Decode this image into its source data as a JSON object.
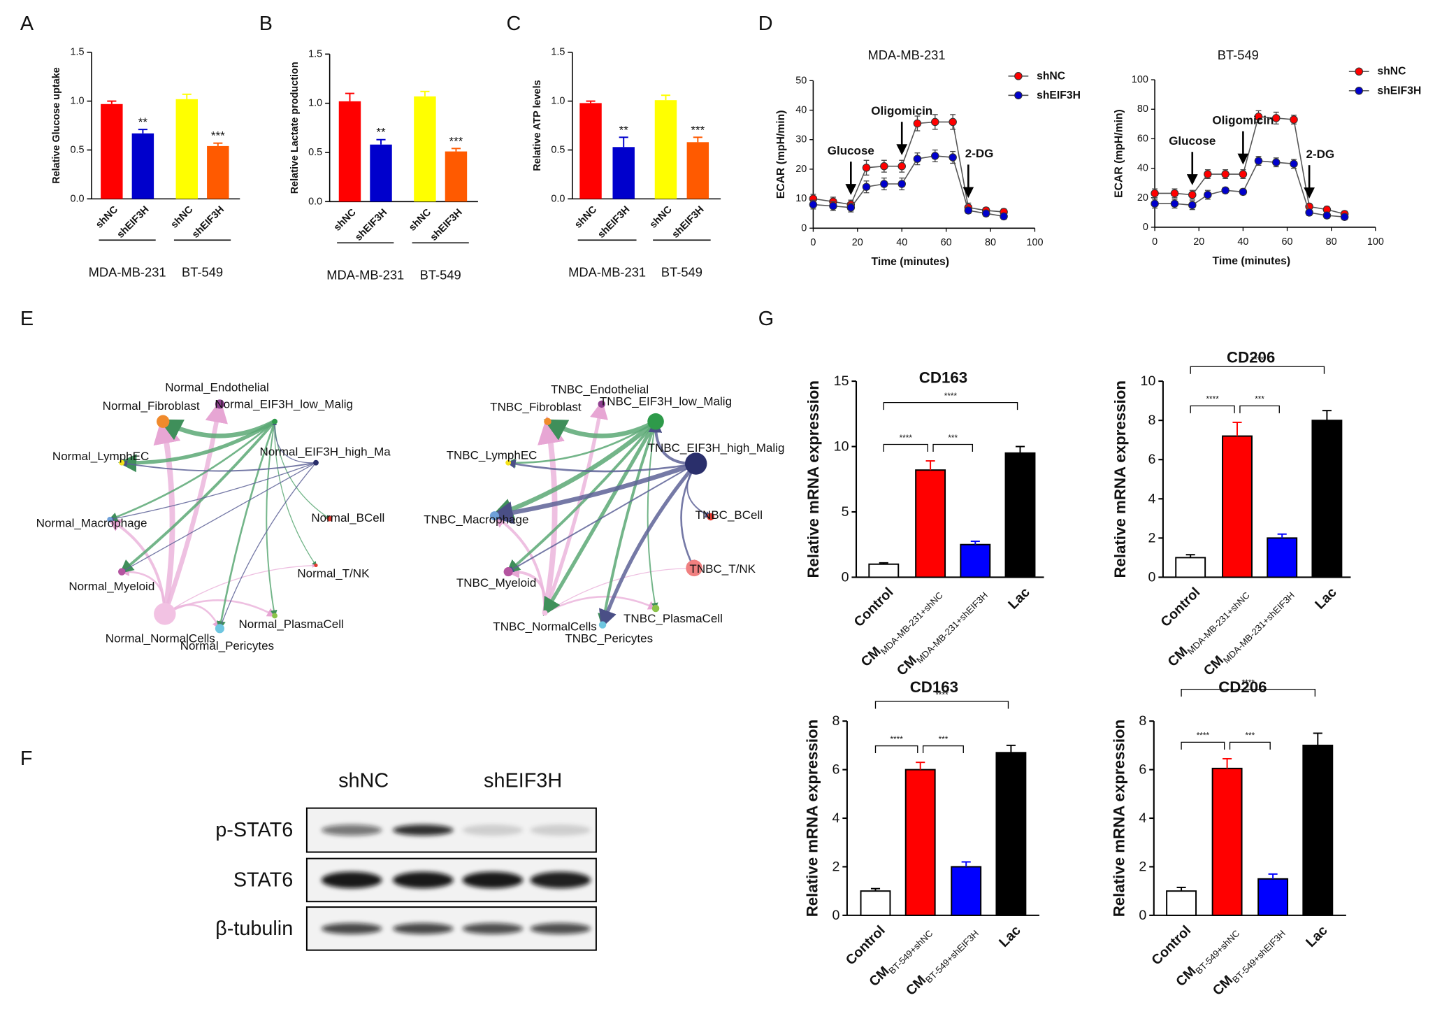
{
  "chart_data": [
    {
      "panel": "A",
      "type": "bar",
      "ylabel": "Relative Glucose uptake",
      "categories": [
        "shNC",
        "shEIF3H",
        "shNC",
        "shEIF3H"
      ],
      "values": [
        0.97,
        0.67,
        1.02,
        0.54
      ],
      "errors": [
        0.03,
        0.04,
        0.05,
        0.03
      ],
      "colors": [
        "#ff0000",
        "#0000cc",
        "#ffff00",
        "#ff5a00"
      ],
      "significance": [
        null,
        "**",
        null,
        "***"
      ],
      "groups": [
        "MDA-MB-231",
        "BT-549"
      ],
      "ylim": [
        0,
        1.5
      ],
      "yticks": [
        {
          "value": 0,
          "label": "0.0"
        },
        0.5,
        {
          "value": 1,
          "label": "1.0"
        },
        1.5
      ]
    },
    {
      "panel": "B",
      "type": "bar",
      "ylabel": "Relative Lactate production",
      "categories": [
        "shNC",
        "shEIF3H",
        "shNC",
        "shEIF3H"
      ],
      "values": [
        1.02,
        0.58,
        1.07,
        0.51
      ],
      "errors": [
        0.08,
        0.05,
        0.05,
        0.03
      ],
      "colors": [
        "#ff0000",
        "#0000cc",
        "#ffff00",
        "#ff5a00"
      ],
      "significance": [
        null,
        "**",
        null,
        "***"
      ],
      "groups": [
        "MDA-MB-231",
        "BT-549"
      ],
      "ylim": [
        0,
        1.5
      ],
      "yticks": [
        {
          "value": 0,
          "label": "0.0"
        },
        0.5,
        {
          "value": 1,
          "label": "1.0"
        },
        1.5
      ]
    },
    {
      "panel": "C",
      "type": "bar",
      "ylabel": "Relative ATP levels",
      "categories": [
        "shNC",
        "shEIF3H",
        "shNC",
        "shEIF3H"
      ],
      "values": [
        0.98,
        0.53,
        1.01,
        0.58
      ],
      "errors": [
        0.02,
        0.1,
        0.05,
        0.05
      ],
      "colors": [
        "#ff0000",
        "#0000cc",
        "#ffff00",
        "#ff5a00"
      ],
      "significance": [
        null,
        "**",
        null,
        "***"
      ],
      "groups": [
        "MDA-MB-231",
        "BT-549"
      ],
      "ylim": [
        0,
        1.5
      ],
      "yticks": [
        {
          "value": 0,
          "label": "0.0"
        },
        0.5,
        {
          "value": 1,
          "label": "1.0"
        },
        1.5
      ]
    },
    {
      "panel": "D",
      "type": "line",
      "title": "MDA-MB-231",
      "xlabel": "Time (minutes)",
      "ylabel": "ECAR (mpH/min)",
      "x": [
        0,
        9,
        17,
        24,
        32,
        40,
        47,
        55,
        63,
        70,
        78,
        86
      ],
      "series": [
        {
          "name": "shNC",
          "color": "#ff0000",
          "values": [
            10,
            9,
            8,
            20.5,
            21,
            21,
            35.5,
            36,
            36,
            7,
            6,
            5.5
          ],
          "errors": [
            1.5,
            1.5,
            1.5,
            2.5,
            2,
            2,
            2.5,
            2.5,
            2.5,
            1.5,
            1,
            1
          ]
        },
        {
          "name": "shEIF3H",
          "color": "#0000cc",
          "values": [
            8,
            7.5,
            7,
            14,
            15,
            15,
            23.5,
            24.5,
            24,
            6,
            5,
            4
          ],
          "errors": [
            1.5,
            1.5,
            1.5,
            2,
            2,
            2,
            2,
            2,
            2,
            1,
            1,
            1
          ]
        }
      ],
      "annotations": [
        {
          "label": "Glucose",
          "x": 17
        },
        {
          "label": "Oligomicin",
          "x": 40
        },
        {
          "label": "2-DG",
          "x": 70
        }
      ],
      "xlim": [
        0,
        100
      ],
      "xticks": [
        0,
        20,
        40,
        60,
        80,
        100
      ],
      "ylim": [
        0,
        50
      ],
      "yticks": [
        0,
        10,
        20,
        30,
        40,
        50
      ]
    },
    {
      "type": "line",
      "title": "BT-549",
      "xlabel": "Time (minutes)",
      "ylabel": "ECAR (mpH/min)",
      "x": [
        0,
        9,
        17,
        24,
        32,
        40,
        47,
        55,
        63,
        70,
        78,
        86
      ],
      "series": [
        {
          "name": "shNC",
          "color": "#ff0000",
          "values": [
            23,
            23,
            22,
            36,
            36,
            36,
            75,
            74,
            73,
            14,
            12,
            9
          ],
          "errors": [
            3,
            3,
            3,
            3,
            3,
            3,
            4,
            4,
            3,
            2,
            2,
            2
          ]
        },
        {
          "name": "shEIF3H",
          "color": "#0000cc",
          "values": [
            16,
            16,
            15,
            22,
            25,
            24,
            45,
            44,
            43,
            10,
            8,
            7
          ],
          "errors": [
            3,
            3,
            3,
            3,
            2,
            2,
            3,
            3,
            3,
            2,
            2,
            2
          ]
        }
      ],
      "annotations": [
        {
          "label": "Glucose",
          "x": 17
        },
        {
          "label": "Oligomicin",
          "x": 40
        },
        {
          "label": "2-DG",
          "x": 70
        }
      ],
      "xlim": [
        0,
        100
      ],
      "xticks": [
        0,
        20,
        40,
        60,
        80,
        100
      ],
      "ylim": [
        0,
        100
      ],
      "yticks": [
        0,
        20,
        40,
        60,
        80,
        100
      ]
    },
    {
      "panel": "G",
      "type": "bar",
      "title": "CD163",
      "ylabel": "Relative mRNA expression",
      "categories": [
        "Control",
        "CM",
        "CM",
        "Lac"
      ],
      "category_subscripts": [
        null,
        "MDA-MB-231+shNC",
        "MDA-MB-231+shEIF3H",
        null
      ],
      "values": [
        1.0,
        8.2,
        2.5,
        9.5
      ],
      "errors": [
        0.1,
        0.7,
        0.25,
        0.5
      ],
      "colors": [
        "#ffffff",
        "#ff0000",
        "#0000ff",
        "#000000"
      ],
      "comparisons": [
        {
          "from": 0,
          "to": 1,
          "label": "****"
        },
        {
          "from": 1,
          "to": 2,
          "label": "***"
        },
        {
          "from": 0,
          "to": 3,
          "label": "****"
        }
      ],
      "ylim": [
        0,
        15
      ],
      "yticks": [
        0,
        5,
        10,
        15
      ]
    },
    {
      "type": "bar",
      "title": "CD206",
      "ylabel": "Relative mRNA expression",
      "categories": [
        "Control",
        "CM",
        "CM",
        "Lac"
      ],
      "category_subscripts": [
        null,
        "MDA-MB-231+shNC",
        "MDA-MB-231+shEIF3H",
        null
      ],
      "values": [
        1.0,
        7.2,
        2.0,
        8.0
      ],
      "errors": [
        0.15,
        0.7,
        0.2,
        0.5
      ],
      "colors": [
        "#ffffff",
        "#ff0000",
        "#0000ff",
        "#000000"
      ],
      "comparisons": [
        {
          "from": 0,
          "to": 1,
          "label": "****"
        },
        {
          "from": 1,
          "to": 2,
          "label": "***"
        },
        {
          "from": 0,
          "to": 3,
          "label": "****"
        }
      ],
      "ylim": [
        0,
        10
      ],
      "yticks": [
        0,
        2,
        4,
        6,
        8,
        10
      ]
    },
    {
      "type": "bar",
      "title": "CD163",
      "ylabel": "Relative mRNA expression",
      "categories": [
        "Control",
        "CM",
        "CM",
        "Lac"
      ],
      "category_subscripts": [
        null,
        "BT-549+shNC",
        "BT-549+shEIF3H",
        null
      ],
      "values": [
        1.0,
        6.0,
        2.0,
        6.7
      ],
      "errors": [
        0.1,
        0.3,
        0.2,
        0.3
      ],
      "colors": [
        "#ffffff",
        "#ff0000",
        "#0000ff",
        "#000000"
      ],
      "comparisons": [
        {
          "from": 0,
          "to": 1,
          "label": "****"
        },
        {
          "from": 1,
          "to": 2,
          "label": "***"
        },
        {
          "from": 0,
          "to": 3,
          "label": "****"
        }
      ],
      "ylim": [
        0,
        8
      ],
      "yticks": [
        0,
        2,
        4,
        6,
        8
      ]
    },
    {
      "type": "bar",
      "title": "CD206",
      "ylabel": "Relative mRNA expression",
      "categories": [
        "Control",
        "CM",
        "CM",
        "Lac"
      ],
      "category_subscripts": [
        null,
        "BT-549+shNC",
        "BT-549+shEIF3H",
        null
      ],
      "values": [
        1.0,
        6.05,
        1.5,
        7.0
      ],
      "errors": [
        0.15,
        0.4,
        0.2,
        0.5
      ],
      "colors": [
        "#ffffff",
        "#ff0000",
        "#0000ff",
        "#000000"
      ],
      "comparisons": [
        {
          "from": 0,
          "to": 1,
          "label": "****"
        },
        {
          "from": 1,
          "to": 2,
          "label": "***"
        },
        {
          "from": 0,
          "to": 3,
          "label": "****"
        }
      ],
      "ylim": [
        0,
        8
      ],
      "yticks": [
        0,
        2,
        4,
        6,
        8
      ]
    }
  ],
  "network": {
    "panel": "E",
    "graphs": [
      {
        "nodes": [
          "Normal_Endothelial",
          "Normal_Fibroblast",
          "Normal_EIF3H_low_Malig",
          "Normal_EIF3H_high_Ma",
          "Normal_LymphEC",
          "Normal_Macrophage",
          "Normal_BCell",
          "Normal_T/NK",
          "Normal_Myeloid",
          "Normal_NormalCells",
          "Normal_Pericytes",
          "Normal_PlasmaCell"
        ]
      },
      {
        "nodes": [
          "TNBC_Endothelial",
          "TNBC_Fibroblast",
          "TNBC_EIF3H_low_Malig",
          "TNBC_EIF3H_high_Malig",
          "TNBC_LymphEC",
          "TNBC_Macrophage",
          "TNBC_BCell",
          "TNBC_T/NK",
          "TNBC_Myeloid",
          "TNBC_NormalCells",
          "TNBC_Pericytes",
          "TNBC_PlasmaCell"
        ]
      }
    ]
  },
  "western_blot": {
    "panel": "F",
    "groups": [
      "shNC",
      "shEIF3H"
    ],
    "rows": [
      "p-STAT6",
      "STAT6",
      "β-tubulin"
    ]
  }
}
